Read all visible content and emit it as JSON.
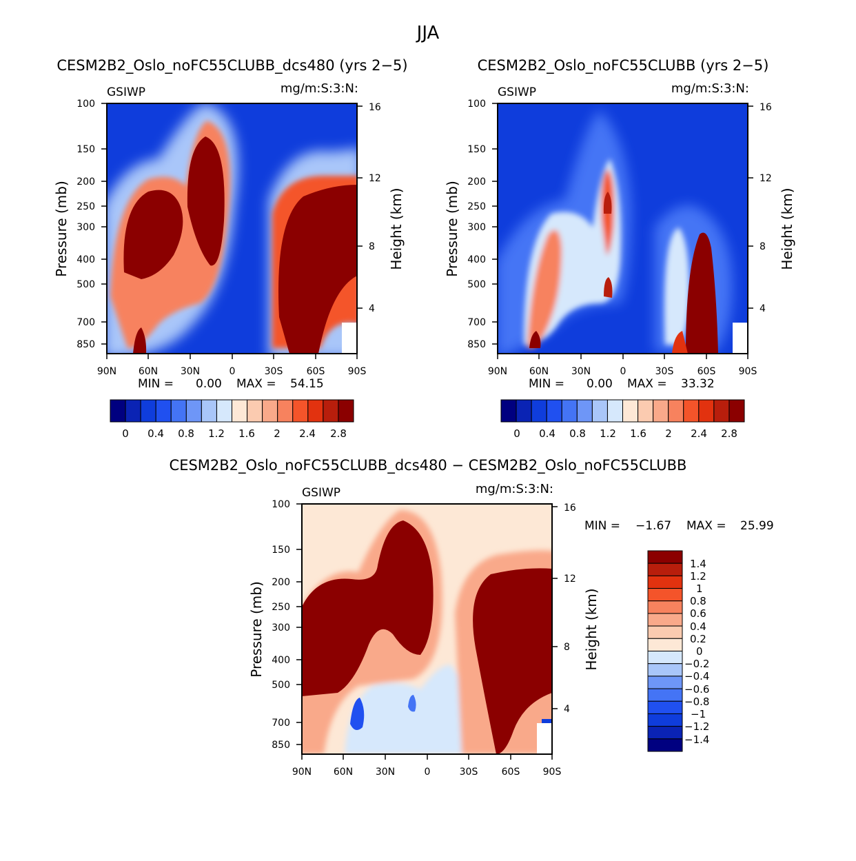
{
  "page_title": "JJA",
  "chart_data": [
    {
      "type": "heatmap",
      "title": "CESM2B2_Oslo_noFC55CLUBB_dcs480 (yrs 2−5)",
      "variable": "GSIWP",
      "units": "mg/m:S:3:N:",
      "ylabel": "Pressure (mb)",
      "ylabel2": "Height (km)",
      "xticks": [
        "90N",
        "60N",
        "30N",
        "0",
        "30S",
        "60S",
        "90S"
      ],
      "yticks": [
        "100",
        "150",
        "200",
        "250",
        "300",
        "400",
        "500",
        "700",
        "850"
      ],
      "y2ticks": [
        "16",
        "12",
        "8",
        "4"
      ],
      "min_label": "MIN =",
      "min_value": "0.00",
      "max_label": "MAX =",
      "max_value": "54.15",
      "colorbar_labels": [
        "0",
        "0.4",
        "0.8",
        "1.2",
        "1.6",
        "2",
        "2.4",
        "2.8"
      ],
      "colors": [
        "#000080",
        "#0a23b4",
        "#0f3ddc",
        "#2050f0",
        "#4474f5",
        "#6e96f7",
        "#a9c6f9",
        "#d6e8fc",
        "#fde8d6",
        "#fbcbb0",
        "#f9a98a",
        "#f7825e",
        "#f4542a",
        "#e2320f",
        "#b81e0c",
        "#8b0000"
      ]
    },
    {
      "type": "heatmap",
      "title": "CESM2B2_Oslo_noFC55CLUBB (yrs 2−5)",
      "variable": "GSIWP",
      "units": "mg/m:S:3:N:",
      "ylabel": "Pressure (mb)",
      "ylabel2": "Height (km)",
      "xticks": [
        "90N",
        "60N",
        "30N",
        "0",
        "30S",
        "60S",
        "90S"
      ],
      "yticks": [
        "100",
        "150",
        "200",
        "250",
        "300",
        "400",
        "500",
        "700",
        "850"
      ],
      "y2ticks": [
        "16",
        "12",
        "8",
        "4"
      ],
      "min_label": "MIN =",
      "min_value": "0.00",
      "max_label": "MAX =",
      "max_value": "33.32",
      "colorbar_labels": [
        "0",
        "0.4",
        "0.8",
        "1.2",
        "1.6",
        "2",
        "2.4",
        "2.8"
      ],
      "colors": [
        "#000080",
        "#0a23b4",
        "#0f3ddc",
        "#2050f0",
        "#4474f5",
        "#6e96f7",
        "#a9c6f9",
        "#d6e8fc",
        "#fde8d6",
        "#fbcbb0",
        "#f9a98a",
        "#f7825e",
        "#f4542a",
        "#e2320f",
        "#b81e0c",
        "#8b0000"
      ]
    },
    {
      "type": "heatmap",
      "title": "CESM2B2_Oslo_noFC55CLUBB_dcs480 − CESM2B2_Oslo_noFC55CLUBB",
      "variable": "GSIWP",
      "units": "mg/m:S:3:N:",
      "ylabel": "Pressure (mb)",
      "ylabel2": "Height (km)",
      "xticks": [
        "90N",
        "60N",
        "30N",
        "0",
        "30S",
        "60S",
        "90S"
      ],
      "yticks": [
        "100",
        "150",
        "200",
        "250",
        "300",
        "400",
        "500",
        "700",
        "850"
      ],
      "y2ticks": [
        "16",
        "12",
        "8",
        "4"
      ],
      "min_label": "MIN =",
      "min_value": "−1.67",
      "max_label": "MAX =",
      "max_value": "25.99",
      "colorbar_labels": [
        "1.4",
        "1.2",
        "1",
        "0.8",
        "0.6",
        "0.4",
        "0.2",
        "0",
        "−0.2",
        "−0.4",
        "−0.6",
        "−0.8",
        "−1",
        "−1.2",
        "−1.4"
      ],
      "colors": [
        "#8b0000",
        "#b81e0c",
        "#e2320f",
        "#f4542a",
        "#f7825e",
        "#f9a98a",
        "#fbcbb0",
        "#fde8d6",
        "#d6e8fc",
        "#a9c6f9",
        "#6e96f7",
        "#4474f5",
        "#2050f0",
        "#0f3ddc",
        "#0a23b4",
        "#000080"
      ]
    }
  ]
}
